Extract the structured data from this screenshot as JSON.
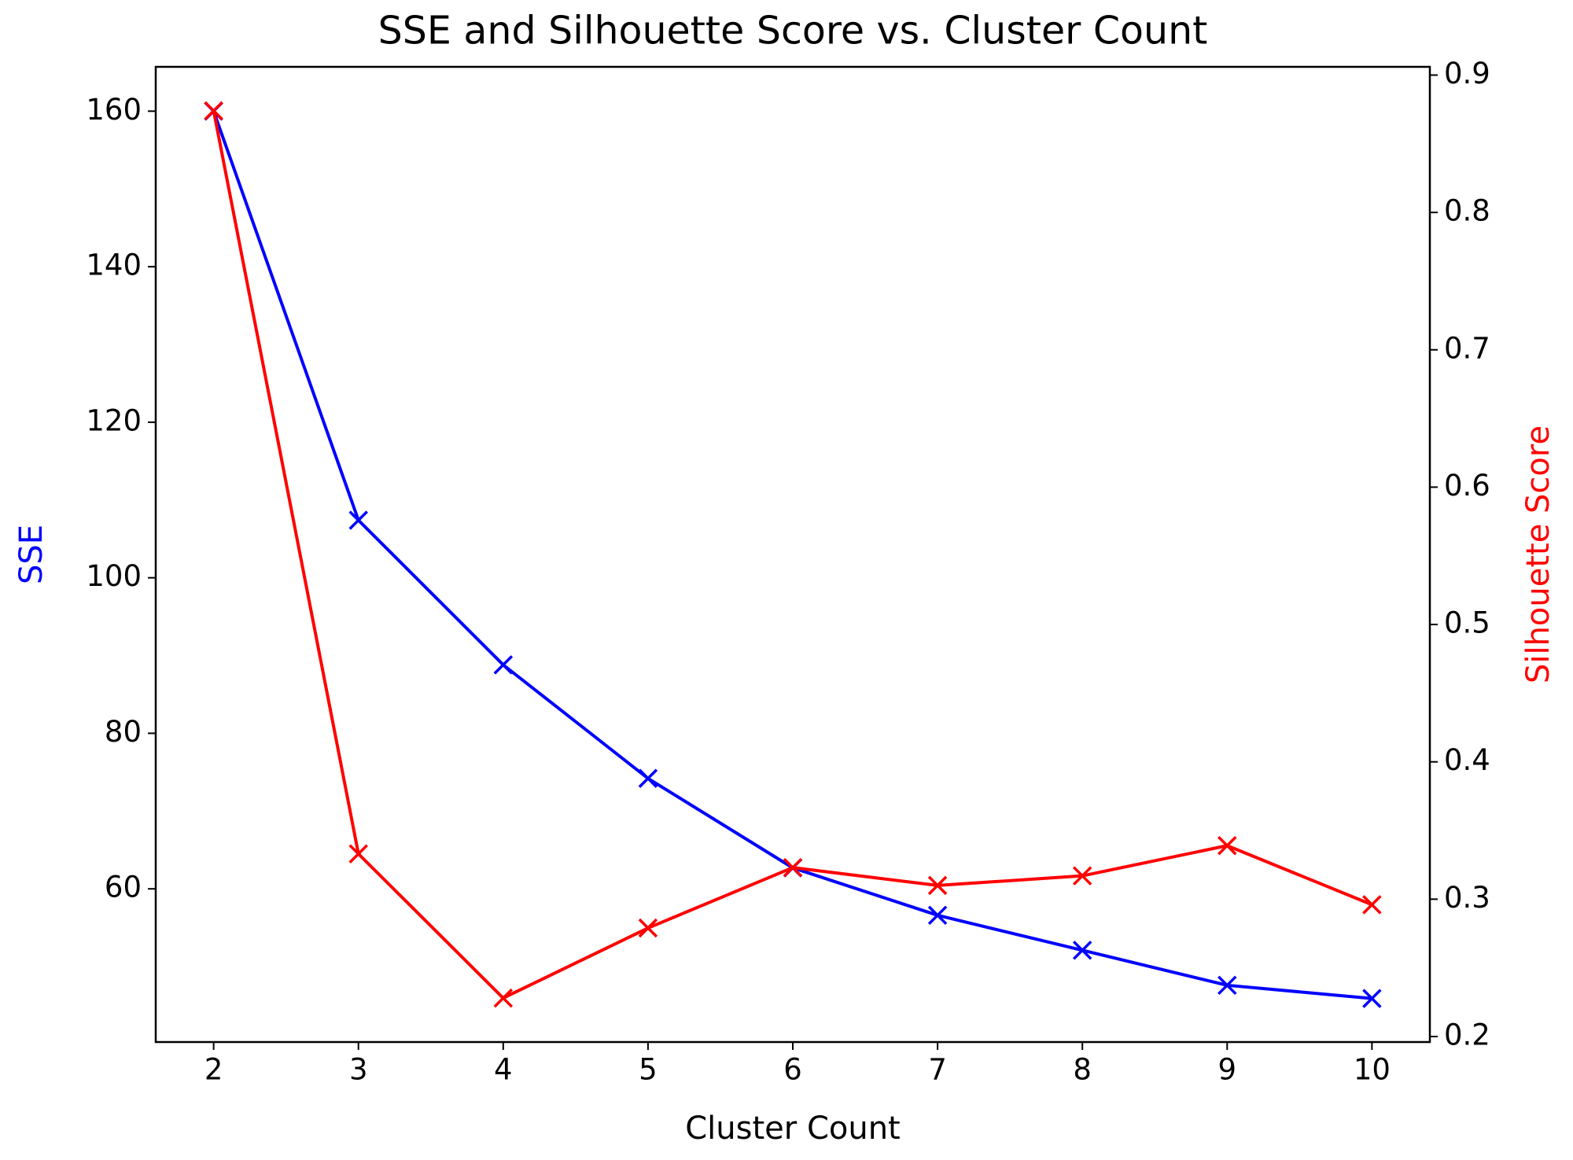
{
  "chart_data": {
    "type": "line",
    "title": "SSE and Silhouette Score vs. Cluster Count",
    "x_label": "Cluster Count",
    "y_label": "SSE",
    "y2_label": "Silhouette Score",
    "x": [
      2,
      3,
      4,
      5,
      6,
      7,
      8,
      9,
      10
    ],
    "xlim": [
      1.6,
      10.4
    ],
    "xticks": [
      2,
      3,
      4,
      5,
      6,
      7,
      8,
      9,
      10
    ],
    "ylim": [
      40.3,
      165.7
    ],
    "yticks": [
      60,
      80,
      100,
      120,
      140,
      160
    ],
    "y2lim": [
      0.196,
      0.906
    ],
    "y2ticks": [
      0.2,
      0.3,
      0.4,
      0.5,
      0.6,
      0.7,
      0.8,
      0.9
    ],
    "marker": "x",
    "series": [
      {
        "name": "SSE",
        "color": "#0000ff",
        "values": [
          160,
          107.4,
          88.8,
          74.2,
          62.7,
          56.6,
          52.1,
          47.6,
          45.9
        ]
      },
      {
        "name": "Silhouette Score",
        "color": "#ff0000",
        "axis": "y2",
        "values": [
          0.874,
          0.333,
          0.228,
          0.279,
          0.323,
          0.31,
          0.317,
          0.339,
          0.296
        ]
      }
    ]
  }
}
